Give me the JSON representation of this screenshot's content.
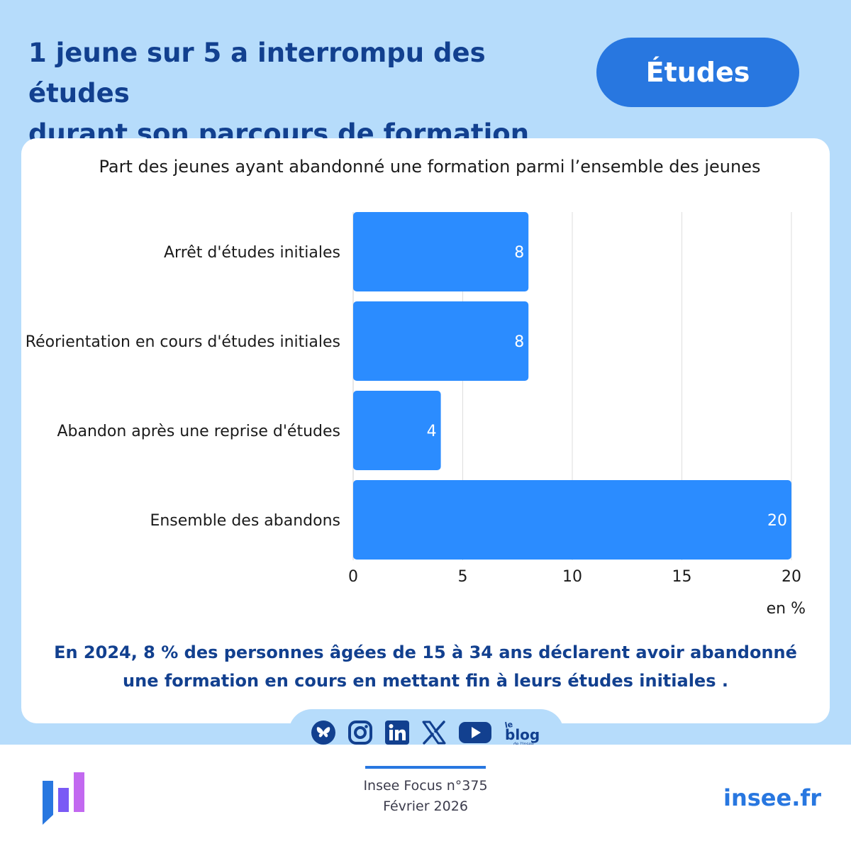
{
  "header": {
    "title_line1": "1 jeune sur 5 a interrompu des études",
    "title_line2": "durant son parcours de formation",
    "tag": "Études"
  },
  "chart_data": {
    "type": "bar",
    "orientation": "horizontal",
    "title": "Part des jeunes ayant abandonné une formation parmi l’ensemble des jeunes",
    "categories": [
      "Arrêt d'études initiales",
      "Réorientation en cours d'études initiales",
      "Abandon après une reprise d'études",
      "Ensemble des abandons"
    ],
    "values": [
      8,
      8,
      4,
      20
    ],
    "data_labels": [
      "8",
      "8",
      "4",
      "20"
    ],
    "xlim": [
      0,
      20
    ],
    "xticks": [
      0,
      5,
      10,
      15,
      20
    ],
    "xtick_labels": [
      "0",
      "5",
      "10",
      "15",
      "20"
    ],
    "unit_label": "en %",
    "grid": true,
    "legend": "none",
    "bar_color": "#2b8cff"
  },
  "caption": {
    "line1": "En 2024, 8 % des personnes âgées de 15 à 34 ans déclarent avoir abandonné",
    "line2": "une formation en cours en mettant fin à leurs études initiales ."
  },
  "social": {
    "icons": [
      "bluesky-icon",
      "instagram-icon",
      "linkedin-icon",
      "x-icon",
      "youtube-icon",
      "blog-icon"
    ],
    "blog_le": "le",
    "blog_word": "blog",
    "blog_sub": "de l'Insee"
  },
  "footer": {
    "publication": "Insee Focus n°375",
    "date": "Février 2026",
    "site": "insee.fr"
  },
  "colors": {
    "background": "#b6dcfb",
    "title": "#12408f",
    "accent": "#2877e0",
    "bar": "#2b8cff"
  }
}
